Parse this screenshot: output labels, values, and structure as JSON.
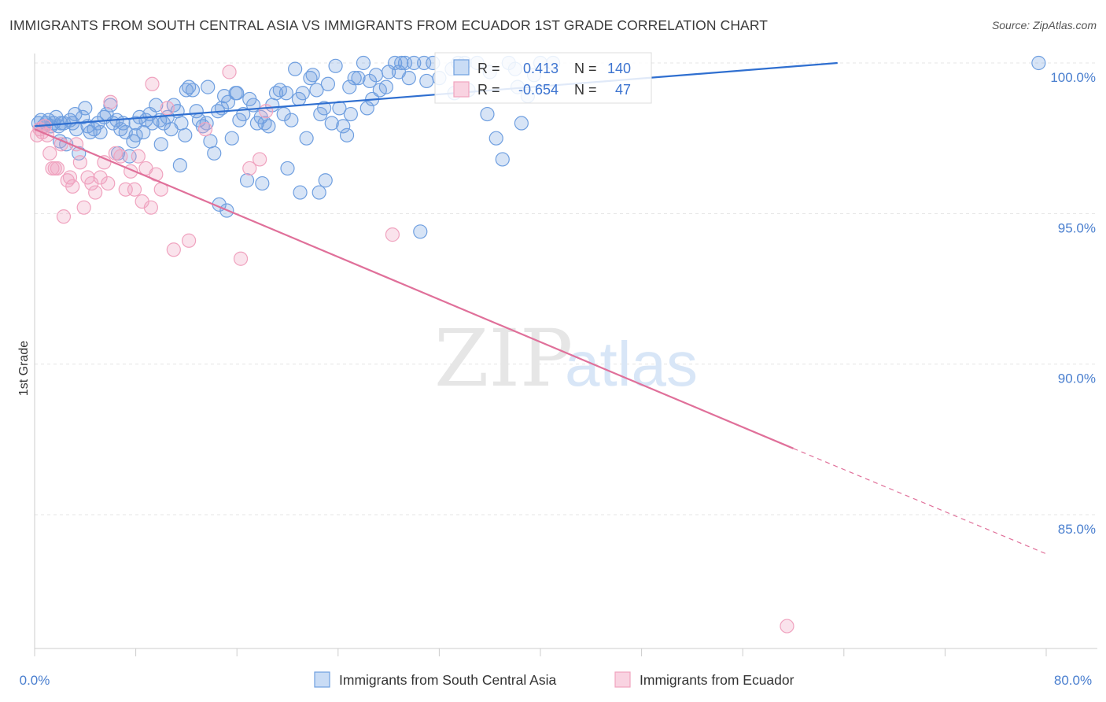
{
  "title": "IMMIGRANTS FROM SOUTH CENTRAL ASIA VS IMMIGRANTS FROM ECUADOR 1ST GRADE CORRELATION CHART",
  "source": "Source: ZipAtlas.com",
  "watermark": {
    "zip": "ZIP",
    "atlas": "atlas"
  },
  "colors": {
    "blue": "#6f9fe0",
    "pink": "#f0a3bf",
    "blue_line": "#2f6fd0",
    "pink_line": "#e0709a"
  },
  "stats": {
    "r_label": "R =",
    "n_label": "N =",
    "blue": {
      "r": "0.413",
      "n": "140"
    },
    "pink": {
      "r": "-0.654",
      "n": "47"
    }
  },
  "legend": {
    "blue": "Immigrants from South Central Asia",
    "pink": "Immigrants from Ecuador"
  },
  "chart_data": {
    "type": "scatter",
    "title": "IMMIGRANTS FROM SOUTH CENTRAL ASIA VS IMMIGRANTS FROM ECUADOR 1ST GRADE CORRELATION CHART",
    "xlabel": "",
    "ylabel": "1st Grade",
    "xlim": [
      0,
      80
    ],
    "ylim": [
      80.5,
      100.8
    ],
    "x_tick_labels": {
      "min": "0.0%",
      "max": "80.0%"
    },
    "y_ticks": [
      {
        "value": 100,
        "label": "100.0%"
      },
      {
        "value": 95,
        "label": "95.0%"
      },
      {
        "value": 90,
        "label": "90.0%"
      },
      {
        "value": 85,
        "label": "85.0%"
      }
    ],
    "series": [
      {
        "name": "Immigrants from South Central Asia",
        "color": "#6f9fe0",
        "trend": {
          "x": [
            0,
            63.5
          ],
          "y": [
            97.9,
            100.0
          ]
        },
        "points": [
          [
            0.3,
            98.0
          ],
          [
            0.5,
            98.1
          ],
          [
            0.7,
            97.9
          ],
          [
            0.9,
            98.0
          ],
          [
            1.1,
            98.1
          ],
          [
            1.3,
            97.9
          ],
          [
            1.5,
            98.0
          ],
          [
            1.7,
            98.2
          ],
          [
            1.9,
            97.9
          ],
          [
            2.1,
            98.0
          ],
          [
            2.3,
            98.0
          ],
          [
            2.5,
            97.3
          ],
          [
            2.8,
            98.1
          ],
          [
            3.0,
            98.0
          ],
          [
            3.2,
            98.3
          ],
          [
            3.5,
            97.0
          ],
          [
            3.8,
            98.2
          ],
          [
            4.0,
            98.5
          ],
          [
            4.2,
            97.9
          ],
          [
            4.4,
            97.7
          ],
          [
            4.7,
            97.8
          ],
          [
            5.0,
            98.0
          ],
          [
            5.2,
            97.7
          ],
          [
            5.5,
            98.2
          ],
          [
            5.7,
            98.3
          ],
          [
            6.0,
            98.6
          ],
          [
            6.2,
            98.0
          ],
          [
            6.5,
            98.1
          ],
          [
            6.8,
            97.8
          ],
          [
            7.0,
            98.0
          ],
          [
            7.2,
            97.7
          ],
          [
            7.5,
            96.9
          ],
          [
            7.8,
            97.4
          ],
          [
            8.0,
            98.0
          ],
          [
            8.3,
            98.2
          ],
          [
            8.6,
            97.7
          ],
          [
            8.8,
            98.1
          ],
          [
            9.1,
            98.3
          ],
          [
            9.3,
            98.0
          ],
          [
            9.6,
            98.6
          ],
          [
            9.9,
            98.1
          ],
          [
            10.2,
            98.0
          ],
          [
            10.5,
            98.2
          ],
          [
            10.8,
            97.8
          ],
          [
            11.0,
            98.6
          ],
          [
            11.3,
            98.4
          ],
          [
            11.6,
            98.0
          ],
          [
            11.9,
            97.6
          ],
          [
            12.2,
            99.2
          ],
          [
            12.5,
            99.1
          ],
          [
            12.8,
            98.4
          ],
          [
            13.0,
            98.1
          ],
          [
            13.3,
            97.9
          ],
          [
            13.6,
            98.0
          ],
          [
            13.9,
            97.4
          ],
          [
            14.2,
            97.0
          ],
          [
            14.5,
            98.4
          ],
          [
            14.8,
            98.5
          ],
          [
            15.0,
            98.9
          ],
          [
            15.3,
            98.7
          ],
          [
            15.6,
            97.5
          ],
          [
            15.9,
            99.0
          ],
          [
            16.2,
            98.1
          ],
          [
            16.5,
            98.3
          ],
          [
            16.8,
            96.1
          ],
          [
            17.0,
            98.8
          ],
          [
            17.3,
            98.6
          ],
          [
            17.6,
            98.0
          ],
          [
            17.9,
            98.2
          ],
          [
            18.2,
            98.0
          ],
          [
            18.5,
            97.9
          ],
          [
            18.8,
            98.6
          ],
          [
            19.1,
            99.0
          ],
          [
            19.4,
            99.1
          ],
          [
            19.7,
            98.3
          ],
          [
            20.0,
            96.5
          ],
          [
            20.3,
            98.1
          ],
          [
            20.6,
            99.8
          ],
          [
            20.9,
            98.8
          ],
          [
            21.2,
            99.0
          ],
          [
            21.5,
            97.5
          ],
          [
            21.8,
            99.5
          ],
          [
            22.0,
            99.6
          ],
          [
            22.3,
            99.1
          ],
          [
            22.6,
            98.3
          ],
          [
            22.9,
            98.5
          ],
          [
            23.2,
            99.3
          ],
          [
            23.5,
            98.0
          ],
          [
            23.8,
            99.9
          ],
          [
            24.1,
            98.5
          ],
          [
            24.4,
            97.9
          ],
          [
            24.7,
            97.6
          ],
          [
            25.0,
            98.3
          ],
          [
            25.3,
            99.5
          ],
          [
            25.6,
            99.5
          ],
          [
            26.0,
            100.0
          ],
          [
            26.3,
            98.5
          ],
          [
            26.7,
            98.8
          ],
          [
            27.0,
            99.6
          ],
          [
            27.3,
            99.1
          ],
          [
            28.0,
            99.7
          ],
          [
            28.5,
            100.0
          ],
          [
            29.0,
            100.0
          ],
          [
            29.3,
            100.0
          ],
          [
            29.6,
            99.5
          ],
          [
            30.0,
            100.0
          ],
          [
            31.0,
            99.4
          ],
          [
            31.5,
            100.0
          ],
          [
            33.0,
            99.8
          ],
          [
            33.5,
            100.0
          ],
          [
            34.3,
            99.1
          ],
          [
            35.0,
            100.0
          ],
          [
            35.8,
            98.3
          ],
          [
            36.5,
            97.5
          ],
          [
            37.0,
            96.8
          ],
          [
            38.0,
            99.8
          ],
          [
            38.5,
            98.0
          ],
          [
            39.0,
            98.9
          ],
          [
            40.0,
            100.0
          ],
          [
            41.0,
            100.0
          ],
          [
            33.2,
            99.0
          ],
          [
            30.5,
            94.4
          ],
          [
            23.0,
            96.1
          ],
          [
            21.0,
            95.7
          ],
          [
            18.0,
            96.0
          ],
          [
            14.6,
            95.3
          ],
          [
            15.2,
            95.1
          ],
          [
            8.0,
            97.6
          ],
          [
            10.0,
            97.3
          ],
          [
            11.5,
            96.6
          ],
          [
            22.5,
            95.7
          ],
          [
            12.0,
            99.1
          ],
          [
            2.0,
            97.4
          ],
          [
            6.6,
            97.0
          ],
          [
            3.3,
            97.8
          ],
          [
            16.0,
            99.0
          ],
          [
            13.7,
            99.2
          ],
          [
            24.9,
            99.2
          ],
          [
            19.9,
            99.0
          ],
          [
            26.5,
            99.4
          ],
          [
            27.8,
            99.2
          ],
          [
            28.8,
            99.7
          ],
          [
            30.8,
            100.0
          ],
          [
            32.0,
            99.5
          ],
          [
            34.0,
            100.0
          ],
          [
            36.0,
            99.7
          ],
          [
            37.5,
            100.0
          ],
          [
            38.2,
            99.2
          ],
          [
            39.5,
            99.6
          ],
          [
            79.4,
            100.0
          ]
        ]
      },
      {
        "name": "Immigrants from Ecuador",
        "color": "#f0a3bf",
        "trend": {
          "x": [
            0,
            60.0
          ],
          "y": [
            97.8,
            87.2
          ]
        },
        "trend_dashed": {
          "x": [
            60.0,
            80.0
          ],
          "y": [
            87.2,
            83.7
          ]
        },
        "points": [
          [
            0.2,
            97.6
          ],
          [
            0.4,
            97.8
          ],
          [
            0.6,
            97.7
          ],
          [
            0.8,
            97.9
          ],
          [
            1.0,
            97.6
          ],
          [
            1.2,
            97.0
          ],
          [
            1.4,
            96.5
          ],
          [
            1.6,
            96.5
          ],
          [
            1.8,
            96.5
          ],
          [
            2.1,
            97.3
          ],
          [
            2.3,
            94.9
          ],
          [
            2.6,
            96.1
          ],
          [
            2.8,
            96.2
          ],
          [
            3.0,
            95.9
          ],
          [
            3.3,
            97.3
          ],
          [
            3.6,
            96.7
          ],
          [
            3.9,
            95.2
          ],
          [
            4.2,
            96.2
          ],
          [
            4.5,
            96.0
          ],
          [
            4.8,
            95.7
          ],
          [
            5.2,
            96.2
          ],
          [
            5.5,
            96.7
          ],
          [
            5.8,
            96.0
          ],
          [
            6.0,
            98.7
          ],
          [
            6.4,
            97.0
          ],
          [
            6.8,
            96.9
          ],
          [
            7.2,
            95.8
          ],
          [
            7.6,
            96.4
          ],
          [
            7.9,
            95.8
          ],
          [
            8.2,
            96.9
          ],
          [
            8.5,
            95.4
          ],
          [
            8.8,
            96.5
          ],
          [
            9.2,
            95.2
          ],
          [
            9.6,
            96.3
          ],
          [
            10.0,
            95.8
          ],
          [
            10.5,
            98.5
          ],
          [
            11.0,
            93.8
          ],
          [
            12.2,
            94.1
          ],
          [
            13.5,
            97.8
          ],
          [
            15.4,
            99.7
          ],
          [
            16.3,
            93.5
          ],
          [
            17.0,
            96.5
          ],
          [
            17.8,
            96.8
          ],
          [
            18.3,
            98.4
          ],
          [
            28.3,
            94.3
          ],
          [
            59.5,
            81.3
          ],
          [
            9.3,
            99.3
          ]
        ]
      }
    ]
  }
}
